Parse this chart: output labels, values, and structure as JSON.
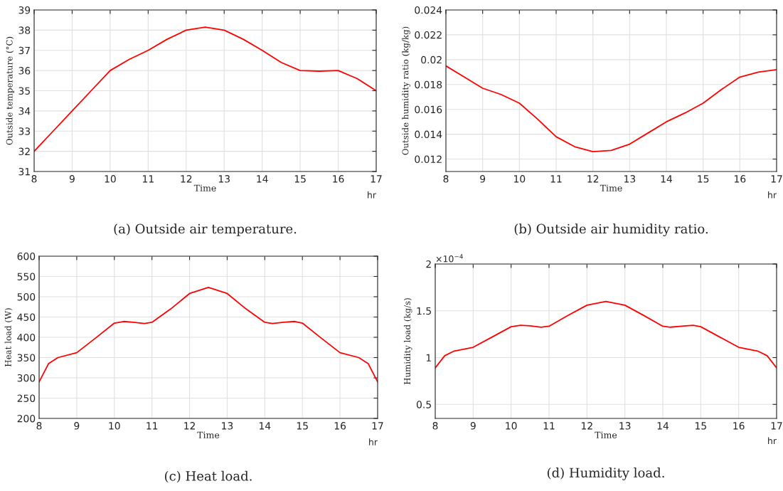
{
  "chart_data": [
    {
      "type": "line",
      "title": "(a) Outside air temperature.",
      "xlabel": "Time",
      "ylabel": "Outside temperature (°C)",
      "annotations": [
        "hr"
      ],
      "x": [
        8,
        8.5,
        9,
        9.5,
        10,
        10.5,
        11,
        11.5,
        12,
        12.5,
        13,
        13.5,
        14,
        14.5,
        15,
        15.5,
        16,
        16.5,
        17
      ],
      "series": [
        {
          "color": "#ff0000",
          "values": [
            32,
            33.0,
            34,
            35.0,
            36,
            36.55,
            37,
            37.55,
            38,
            38.15,
            38,
            37.55,
            37,
            36.4,
            36,
            35.97,
            36,
            35.6,
            35
          ]
        }
      ],
      "xlim": [
        8,
        17
      ],
      "xticks": [
        8,
        9,
        10,
        11,
        12,
        13,
        14,
        15,
        16,
        17
      ],
      "ylim": [
        31,
        39
      ],
      "yticks": [
        31,
        32,
        33,
        34,
        35,
        36,
        37,
        38,
        39
      ],
      "grid": true,
      "marker": "none",
      "line_style": "solid"
    },
    {
      "type": "line",
      "title": "(b) Outside air humidity ratio.",
      "xlabel": "Time",
      "ylabel": "Outside humidity ratio (kg/kg)",
      "annotations": [
        "hr"
      ],
      "x": [
        8,
        8.5,
        9,
        9.5,
        10,
        10.5,
        11,
        11.5,
        12,
        12.5,
        13,
        13.5,
        14,
        14.5,
        15,
        15.5,
        16,
        16.5,
        17
      ],
      "series": [
        {
          "color": "#ff0000",
          "values": [
            0.0195,
            0.0186,
            0.0177,
            0.0172,
            0.0165,
            0.0152,
            0.0138,
            0.013,
            0.0126,
            0.0127,
            0.0132,
            0.0141,
            0.015,
            0.0157,
            0.0165,
            0.0176,
            0.0186,
            0.019,
            0.0192
          ]
        }
      ],
      "xlim": [
        8,
        17
      ],
      "xticks": [
        8,
        9,
        10,
        11,
        12,
        13,
        14,
        15,
        16,
        17
      ],
      "ylim": [
        0.011,
        0.024
      ],
      "yticks": [
        0.012,
        0.014,
        0.016,
        0.018,
        0.02,
        0.022,
        0.024
      ],
      "grid": true,
      "marker": "none",
      "line_style": "solid"
    },
    {
      "type": "line",
      "title": "(c) Heat load.",
      "xlabel": "Time",
      "ylabel": "Heat load (W)",
      "annotations": [
        "hr"
      ],
      "x": [
        8,
        8.25,
        8.5,
        9,
        9.5,
        10,
        10.25,
        10.5,
        10.8,
        11,
        11.5,
        12,
        12.5,
        13,
        13.5,
        14,
        14.2,
        14.5,
        14.8,
        15,
        15.5,
        16,
        16.5,
        16.75,
        17
      ],
      "series": [
        {
          "color": "#ff0000",
          "values": [
            290,
            335,
            350,
            362,
            398,
            435,
            439,
            437,
            434,
            437,
            470,
            508,
            523,
            508,
            470,
            437,
            434,
            437,
            439,
            435,
            398,
            362,
            350,
            335,
            290
          ]
        }
      ],
      "xlim": [
        8,
        17
      ],
      "xticks": [
        8,
        9,
        10,
        11,
        12,
        13,
        14,
        15,
        16,
        17
      ],
      "ylim": [
        200,
        600
      ],
      "yticks": [
        200,
        250,
        300,
        350,
        400,
        450,
        500,
        550,
        600
      ],
      "grid": true,
      "marker": "none",
      "line_style": "solid"
    },
    {
      "type": "line",
      "title": "(d) Humidity load.",
      "xlabel": "Time",
      "ylabel": "Humidity load (kg/s)",
      "annotations": [
        "hr",
        "×10$^{−4}$"
      ],
      "x": [
        8,
        8.25,
        8.5,
        9,
        9.5,
        10,
        10.25,
        10.5,
        10.8,
        11,
        11.5,
        12,
        12.5,
        13,
        13.5,
        14,
        14.2,
        14.5,
        14.8,
        15,
        15.5,
        16,
        16.5,
        16.75,
        17
      ],
      "series": [
        {
          "color": "#ff0000",
          "values": [
            0.89,
            1.02,
            1.07,
            1.11,
            1.22,
            1.33,
            1.345,
            1.34,
            1.325,
            1.335,
            1.45,
            1.56,
            1.6,
            1.56,
            1.45,
            1.335,
            1.325,
            1.335,
            1.345,
            1.33,
            1.22,
            1.11,
            1.07,
            1.02,
            0.89
          ]
        }
      ],
      "xlim": [
        8,
        17
      ],
      "xticks": [
        8,
        9,
        10,
        11,
        12,
        13,
        14,
        15,
        16,
        17
      ],
      "ylim": [
        0.35,
        2
      ],
      "yticks": [
        0.5,
        1,
        1.5,
        2
      ],
      "grid": true,
      "marker": "none",
      "line_style": "solid"
    }
  ]
}
